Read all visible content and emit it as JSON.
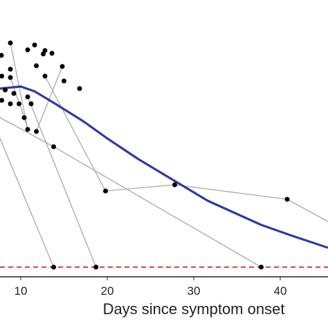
{
  "chart_data": {
    "type": "scatter",
    "xlabel": "Days since symptom onset",
    "xlim": [
      7.6,
      45.52
    ],
    "ylim": [
      -1.4,
      38.6
    ],
    "xticks": [
      10,
      20,
      30,
      40
    ],
    "point_color": "#000000",
    "points": {
      "x": [
        8.8,
        7.76,
        10.8,
        11.6,
        12.8,
        13.6,
        12.6,
        11.8,
        14.8,
        8.8,
        7.8,
        8.8,
        12.8,
        15.0,
        16.8,
        8.2,
        9.2,
        10.8,
        7.8,
        8.8,
        9.8,
        11.2,
        10.4,
        10.8,
        11.8,
        13.8,
        19.8,
        27.8,
        40.8,
        13.8,
        18.7,
        37.8
      ],
      "y": [
        32.4,
        30.6,
        31.4,
        32.1,
        31.3,
        30.9,
        30.8,
        29.1,
        29.0,
        28.6,
        27.6,
        27.4,
        27.6,
        26.9,
        25.8,
        25.6,
        25.1,
        24.6,
        24.1,
        23.6,
        23.6,
        23.6,
        21.6,
        19.9,
        19.6,
        17.4,
        11.0,
        11.9,
        9.8,
        0,
        0,
        0
      ]
    },
    "segment_color": "#a8a8a8",
    "segments": [
      {
        "x": [
          8.8,
          10.8
        ],
        "y": [
          32.4,
          19.9
        ]
      },
      {
        "x": [
          14.8,
          11.8
        ],
        "y": [
          29.0,
          19.6
        ]
      },
      {
        "x": [
          12.8,
          19.8,
          27.8,
          40.8,
          45.5
        ],
        "y": [
          27.6,
          11.0,
          11.9,
          9.8,
          6.6
        ]
      },
      {
        "x": [
          7.6,
          13.8,
          37.8
        ],
        "y": [
          21.6,
          17.4,
          0
        ]
      },
      {
        "x": [
          7.6,
          13.8
        ],
        "y": [
          18.6,
          0
        ]
      },
      {
        "x": [
          10.8,
          18.7
        ],
        "y": [
          24.6,
          0
        ]
      },
      {
        "x": [
          8.8,
          10.4,
          10.8
        ],
        "y": [
          27.4,
          21.6,
          19.9
        ]
      }
    ],
    "trend": {
      "color": "#2f3b9c",
      "x": [
        7.6,
        10.0,
        11.6,
        14.0,
        17.2,
        20.0,
        23.6,
        27.6,
        31.6,
        37.8,
        41.2,
        45.52
      ],
      "y": [
        25.8,
        26.1,
        25.4,
        23.6,
        21.1,
        18.6,
        15.6,
        12.6,
        9.6,
        6.1,
        4.6,
        2.8
      ]
    },
    "threshold": {
      "y": 0,
      "color": "#e02020"
    }
  }
}
